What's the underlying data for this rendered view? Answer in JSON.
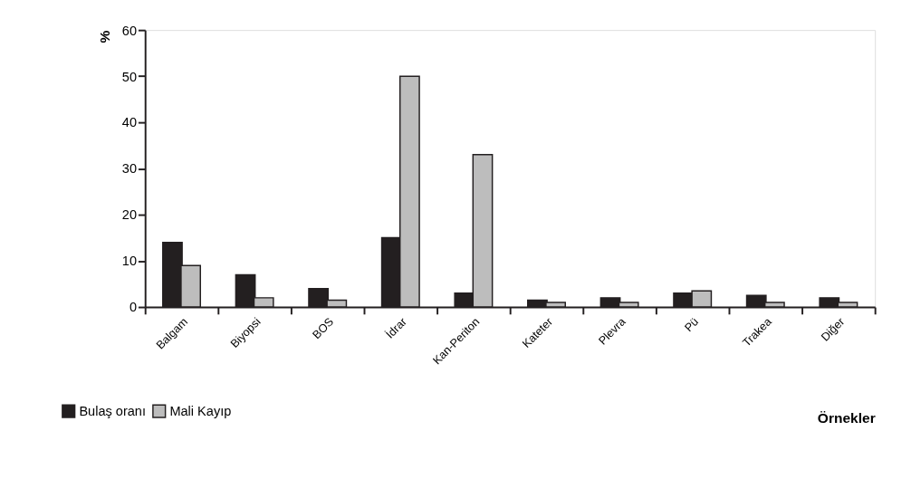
{
  "chart_data": {
    "type": "bar",
    "xlabel": "Örnekler",
    "ylabel": "%",
    "categories": [
      "Balgam",
      "Biyopsi",
      "BOS",
      "İdrar",
      "Kan-Periton",
      "Kateter",
      "Plevra",
      "Pü",
      "Trakea",
      "Diğer"
    ],
    "series": [
      {
        "name": "Bulaş oranı",
        "color": "#231f20",
        "values": [
          14,
          7,
          4,
          15,
          3,
          1.5,
          2,
          3,
          2.5,
          2
        ]
      },
      {
        "name": "Mali Kayıp",
        "color": "#bdbdbd",
        "values": [
          9,
          2,
          1.5,
          50,
          33,
          1,
          1,
          3.5,
          1,
          1
        ]
      }
    ],
    "ylim": [
      0,
      60
    ],
    "yticks": [
      0,
      10,
      20,
      30,
      40,
      50,
      60
    ],
    "grid": false,
    "legend": "bottom left"
  }
}
